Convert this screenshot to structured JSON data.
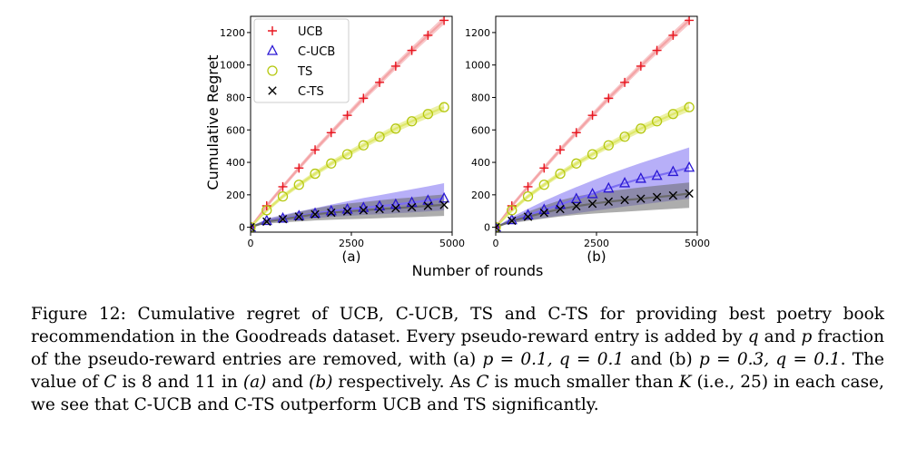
{
  "chart_data": [
    {
      "type": "line",
      "panel_label": "(a)",
      "ylabel": "Cumulative Regret",
      "xlim": [
        0,
        5000
      ],
      "ylim": [
        -30,
        1300
      ],
      "xticks": [
        0,
        2500,
        5000
      ],
      "yticks": [
        0,
        200,
        400,
        600,
        800,
        1000,
        1200
      ],
      "x": [
        0,
        400,
        800,
        1200,
        1600,
        2000,
        2400,
        2800,
        3200,
        3600,
        4000,
        4400,
        4800
      ],
      "series": [
        {
          "name": "UCB",
          "color": "#e8151f",
          "band_color": "#f4a4a6",
          "marker": "plus",
          "values": [
            0,
            132,
            250,
            365,
            477,
            583,
            690,
            795,
            893,
            993,
            1090,
            1183,
            1275
          ],
          "band": [
            [
              0,
              0
            ],
            [
              118,
              146
            ],
            [
              236,
              264
            ],
            [
              350,
              380
            ],
            [
              460,
              494
            ],
            [
              566,
              600
            ],
            [
              672,
              708
            ],
            [
              776,
              814
            ],
            [
              873,
              913
            ],
            [
              972,
              1014
            ],
            [
              1068,
              1112
            ],
            [
              1160,
              1206
            ],
            [
              1250,
              1300
            ]
          ]
        },
        {
          "name": "C-UCB",
          "color": "#2a17d4",
          "band_color": "#7c6ef2",
          "marker": "triangle",
          "values": [
            0,
            40,
            55,
            70,
            85,
            100,
            110,
            120,
            130,
            140,
            152,
            165,
            178
          ],
          "band": [
            [
              0,
              0
            ],
            [
              28,
              54
            ],
            [
              38,
              76
            ],
            [
              48,
              98
            ],
            [
              56,
              118
            ],
            [
              64,
              140
            ],
            [
              70,
              160
            ],
            [
              76,
              180
            ],
            [
              80,
              198
            ],
            [
              86,
              216
            ],
            [
              92,
              234
            ],
            [
              98,
              252
            ],
            [
              104,
              272
            ]
          ]
        },
        {
          "name": "TS",
          "color": "#b5c80f",
          "band_color": "#dfe86c",
          "marker": "circle",
          "values": [
            0,
            105,
            190,
            262,
            330,
            393,
            450,
            505,
            558,
            608,
            653,
            698,
            740
          ],
          "band": [
            [
              0,
              0
            ],
            [
              92,
              118
            ],
            [
              176,
              204
            ],
            [
              247,
              277
            ],
            [
              314,
              346
            ],
            [
              376,
              410
            ],
            [
              432,
              468
            ],
            [
              486,
              524
            ],
            [
              538,
              578
            ],
            [
              586,
              630
            ],
            [
              630,
              676
            ],
            [
              673,
              723
            ],
            [
              714,
              766
            ]
          ]
        },
        {
          "name": "C-TS",
          "color": "#000000",
          "band_color": "#6a6a6a",
          "marker": "x",
          "values": [
            0,
            35,
            50,
            65,
            80,
            90,
            98,
            105,
            112,
            118,
            124,
            132,
            138
          ],
          "band": [
            [
              0,
              0
            ],
            [
              22,
              48
            ],
            [
              30,
              70
            ],
            [
              36,
              94
            ],
            [
              42,
              116
            ],
            [
              46,
              134
            ],
            [
              50,
              146
            ],
            [
              52,
              156
            ],
            [
              56,
              166
            ],
            [
              60,
              176
            ],
            [
              62,
              184
            ],
            [
              66,
              194
            ],
            [
              70,
              202
            ]
          ]
        }
      ]
    },
    {
      "type": "line",
      "panel_label": "(b)",
      "ylabel": "",
      "xlim": [
        0,
        5000
      ],
      "ylim": [
        -30,
        1300
      ],
      "xticks": [
        0,
        2500,
        5000
      ],
      "yticks": [
        0,
        200,
        400,
        600,
        800,
        1000,
        1200
      ],
      "x": [
        0,
        400,
        800,
        1200,
        1600,
        2000,
        2400,
        2800,
        3200,
        3600,
        4000,
        4400,
        4800
      ],
      "series": [
        {
          "name": "UCB",
          "color": "#e8151f",
          "band_color": "#f4a4a6",
          "marker": "plus",
          "values": [
            0,
            132,
            250,
            365,
            477,
            583,
            690,
            795,
            893,
            993,
            1090,
            1183,
            1275
          ],
          "band": [
            [
              0,
              0
            ],
            [
              118,
              146
            ],
            [
              236,
              264
            ],
            [
              350,
              380
            ],
            [
              460,
              494
            ],
            [
              566,
              600
            ],
            [
              672,
              708
            ],
            [
              776,
              814
            ],
            [
              873,
              913
            ],
            [
              972,
              1014
            ],
            [
              1068,
              1112
            ],
            [
              1160,
              1206
            ],
            [
              1250,
              1300
            ]
          ]
        },
        {
          "name": "C-UCB",
          "color": "#2a17d4",
          "band_color": "#7c6ef2",
          "marker": "triangle",
          "values": [
            0,
            45,
            75,
            108,
            140,
            175,
            205,
            240,
            272,
            300,
            318,
            342,
            368
          ],
          "band": [
            [
              0,
              0
            ],
            [
              30,
              64
            ],
            [
              44,
              114
            ],
            [
              58,
              162
            ],
            [
              72,
              206
            ],
            [
              86,
              248
            ],
            [
              100,
              288
            ],
            [
              114,
              326
            ],
            [
              128,
              362
            ],
            [
              140,
              396
            ],
            [
              152,
              428
            ],
            [
              164,
              460
            ],
            [
              176,
              492
            ]
          ]
        },
        {
          "name": "TS",
          "color": "#b5c80f",
          "band_color": "#dfe86c",
          "marker": "circle",
          "values": [
            0,
            105,
            190,
            262,
            330,
            393,
            450,
            505,
            558,
            608,
            653,
            698,
            740
          ],
          "band": [
            [
              0,
              0
            ],
            [
              92,
              118
            ],
            [
              176,
              204
            ],
            [
              247,
              277
            ],
            [
              314,
              346
            ],
            [
              376,
              410
            ],
            [
              432,
              468
            ],
            [
              486,
              524
            ],
            [
              538,
              578
            ],
            [
              586,
              630
            ],
            [
              630,
              676
            ],
            [
              673,
              723
            ],
            [
              714,
              766
            ]
          ]
        },
        {
          "name": "C-TS",
          "color": "#000000",
          "band_color": "#6a6a6a",
          "marker": "x",
          "values": [
            0,
            40,
            65,
            90,
            112,
            130,
            145,
            158,
            168,
            176,
            186,
            196,
            208
          ],
          "band": [
            [
              0,
              0
            ],
            [
              26,
              56
            ],
            [
              40,
              96
            ],
            [
              54,
              134
            ],
            [
              66,
              166
            ],
            [
              76,
              190
            ],
            [
              84,
              208
            ],
            [
              90,
              222
            ],
            [
              96,
              234
            ],
            [
              102,
              246
            ],
            [
              108,
              256
            ],
            [
              114,
              266
            ],
            [
              120,
              276
            ]
          ]
        }
      ]
    }
  ],
  "shared_xlabel": "Number of rounds",
  "legend": {
    "position": "upper-left of panel (a)",
    "entries": [
      "UCB",
      "C-UCB",
      "TS",
      "C-TS"
    ]
  },
  "caption": {
    "label": "Figure 12:",
    "text_1": "Cumulative regret of UCB, C-UCB, TS and C-TS for providing best poetry book recommendation in the Goodreads dataset. Every pseudo-reward entry is added by",
    "q1": "q",
    "text_2": "and",
    "p1": "p",
    "text_3": "fraction of the pseudo-reward entries are removed, with (a)",
    "math_a": "p = 0.1, q = 0.1",
    "text_4": "and (b)",
    "math_b": "p = 0.3, q = 0.1",
    "text_5": ". The value of",
    "C1": "C",
    "text_6": "is 8 and 11 in",
    "pa": "(a)",
    "text_7": "and",
    "pb": "(b)",
    "text_8": "respectively. As",
    "C2": "C",
    "text_9": "is much smaller than",
    "K": "K",
    "text_10": "(i.e., 25) in each case, we see that C-UCB and C-TS outperform UCB and TS significantly."
  }
}
